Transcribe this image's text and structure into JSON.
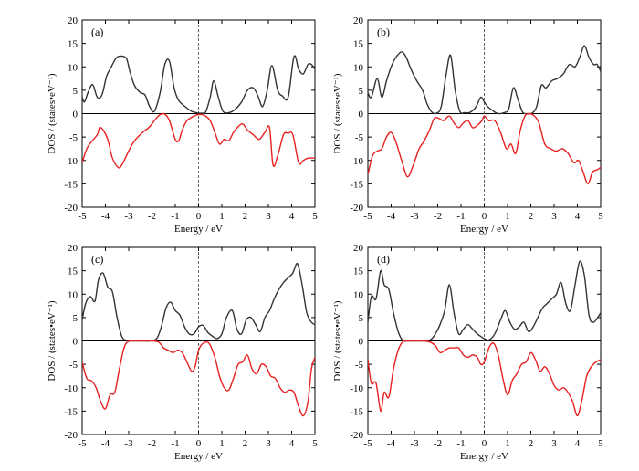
{
  "chart_data": [
    {
      "type": "line",
      "panel_label": "(a)",
      "xlabel": "Energy / eV",
      "ylabel": "DOS / (states•eV⁻¹)",
      "xlim": [
        -5,
        5
      ],
      "ylim": [
        -20,
        20
      ],
      "xticks": [
        -5,
        -4,
        -3,
        -2,
        -1,
        0,
        1,
        2,
        3,
        4,
        5
      ],
      "yticks": [
        -20,
        -15,
        -10,
        -5,
        0,
        5,
        10,
        15,
        20
      ],
      "series": [
        {
          "color": "#333333",
          "x": [
            -5,
            -4.9,
            -4.75,
            -4.55,
            -4.35,
            -4.15,
            -3.95,
            -3.8,
            -3.55,
            -3.35,
            -3.1,
            -2.95,
            -2.75,
            -2.5,
            -2.3,
            -2.1,
            -1.9,
            -1.65,
            -1.45,
            -1.25,
            -1.05,
            -0.85,
            -0.5,
            -0.3,
            -0.1,
            0,
            0.15,
            0.3,
            0.5,
            0.65,
            0.85,
            1.05,
            1.3,
            1.55,
            1.85,
            2.1,
            2.35,
            2.55,
            2.75,
            2.95,
            3.15,
            3.4,
            3.6,
            3.85,
            4.1,
            4.3,
            4.5,
            4.7,
            4.85,
            5
          ],
          "y": [
            3.5,
            2.5,
            4.5,
            6.2,
            3.5,
            4.0,
            8.0,
            9.5,
            11.8,
            12.3,
            11.8,
            9.0,
            6.0,
            4.5,
            4.0,
            1.5,
            0.5,
            4.5,
            10.5,
            11.2,
            5.5,
            2.8,
            1.2,
            0.5,
            0.2,
            0.1,
            0.1,
            0.3,
            3.5,
            7.0,
            3.5,
            0.5,
            0.2,
            0.8,
            2.5,
            5.0,
            5.5,
            3.8,
            1.5,
            5.0,
            10.3,
            5.0,
            3.8,
            3.5,
            12.2,
            9.5,
            8.5,
            10.5,
            10.5,
            9.5
          ]
        },
        {
          "color": "#e8201f",
          "x": [
            -5,
            -4.8,
            -4.6,
            -4.35,
            -4.25,
            -4.1,
            -3.9,
            -3.7,
            -3.45,
            -3.3,
            -3.1,
            -2.9,
            -2.7,
            -2.4,
            -2.1,
            -1.85,
            -1.65,
            -1.45,
            -1.25,
            -1.0,
            -0.85,
            -0.7,
            -0.5,
            -0.3,
            -0.1,
            0,
            0.15,
            0.3,
            0.5,
            0.7,
            0.9,
            1.1,
            1.3,
            1.5,
            1.7,
            1.9,
            2.1,
            2.35,
            2.6,
            2.85,
            3.05,
            3.2,
            3.4,
            3.65,
            3.85,
            4.05,
            4.3,
            4.5,
            4.7,
            4.85,
            5
          ],
          "y": [
            -10.5,
            -7.5,
            -6.0,
            -4.5,
            -3.0,
            -3.5,
            -5.5,
            -9.5,
            -11.5,
            -11.0,
            -9.0,
            -7.0,
            -5.5,
            -4.0,
            -2.8,
            -1.2,
            -0.2,
            -0.1,
            -1.5,
            -5.5,
            -5.8,
            -3.5,
            -1.5,
            -0.8,
            -0.3,
            -0.2,
            -0.2,
            -0.5,
            -1.5,
            -4.0,
            -6.5,
            -5.5,
            -5.8,
            -4.0,
            -2.8,
            -2.2,
            -3.5,
            -4.5,
            -5.5,
            -4.0,
            -3.0,
            -11.0,
            -9.0,
            -4.5,
            -4.2,
            -4.5,
            -10.5,
            -10.0,
            -9.5,
            -9.5,
            -9.5
          ]
        }
      ]
    },
    {
      "type": "line",
      "panel_label": "(b)",
      "xlabel": "Energy / eV",
      "ylabel": "DOS / (states•eV⁻¹)",
      "xlim": [
        -5,
        5
      ],
      "ylim": [
        -20,
        20
      ],
      "xticks": [
        -5,
        -4,
        -3,
        -2,
        -1,
        0,
        1,
        2,
        3,
        4,
        5
      ],
      "yticks": [
        -20,
        -15,
        -10,
        -5,
        0,
        5,
        10,
        15,
        20
      ],
      "series": [
        {
          "color": "#333333",
          "x": [
            -5,
            -4.85,
            -4.6,
            -4.4,
            -4.2,
            -4.0,
            -3.8,
            -3.55,
            -3.35,
            -3.15,
            -2.9,
            -2.65,
            -2.45,
            -2.25,
            -2.05,
            -1.85,
            -1.65,
            -1.45,
            -1.25,
            -1.05,
            -0.85,
            -0.6,
            -0.35,
            -0.15,
            0,
            0.15,
            0.4,
            0.6,
            0.85,
            1.05,
            1.25,
            1.45,
            1.65,
            1.85,
            2.05,
            2.25,
            2.45,
            2.65,
            2.9,
            3.15,
            3.4,
            3.65,
            3.9,
            4.1,
            4.3,
            4.5,
            4.7,
            4.85,
            5
          ],
          "y": [
            4.5,
            3.5,
            7.5,
            3.5,
            7.0,
            10.0,
            12.0,
            13.2,
            12.0,
            9.5,
            7.0,
            5.0,
            2.0,
            0.3,
            0.1,
            1.5,
            8.0,
            12.5,
            5.0,
            0.5,
            0.2,
            0.3,
            1.5,
            3.5,
            2.5,
            1.5,
            0.5,
            0.0,
            0.2,
            1.0,
            5.5,
            3.0,
            0.3,
            0.0,
            0.1,
            1.5,
            6.0,
            5.5,
            7.0,
            7.5,
            8.5,
            10.5,
            10.0,
            12.0,
            14.5,
            12.0,
            10.5,
            10.5,
            9.0
          ]
        },
        {
          "color": "#e8201f",
          "x": [
            -5,
            -4.8,
            -4.6,
            -4.4,
            -4.2,
            -4.0,
            -3.8,
            -3.55,
            -3.3,
            -3.05,
            -2.8,
            -2.6,
            -2.35,
            -2.15,
            -1.95,
            -1.75,
            -1.5,
            -1.3,
            -1.1,
            -0.9,
            -0.7,
            -0.5,
            -0.3,
            -0.1,
            0,
            0.2,
            0.45,
            0.7,
            0.95,
            1.15,
            1.35,
            1.55,
            1.75,
            1.95,
            2.15,
            2.35,
            2.6,
            2.85,
            3.1,
            3.35,
            3.6,
            3.85,
            4.05,
            4.25,
            4.45,
            4.65,
            4.85,
            5
          ],
          "y": [
            -13.0,
            -9.0,
            -8.0,
            -7.5,
            -5.0,
            -4.0,
            -6.0,
            -10.0,
            -13.5,
            -11.0,
            -7.5,
            -6.0,
            -3.5,
            -1.0,
            -1.0,
            -1.5,
            -0.5,
            -2.0,
            -3.0,
            -2.0,
            -1.5,
            -3.0,
            -2.5,
            -1.5,
            -0.5,
            -1.5,
            -1.5,
            -4.0,
            -7.5,
            -6.5,
            -8.5,
            -3.5,
            -0.5,
            0.0,
            -0.5,
            -2.0,
            -6.5,
            -7.5,
            -8.0,
            -7.5,
            -8.5,
            -10.5,
            -10.0,
            -12.5,
            -15.0,
            -12.5,
            -12.0,
            -11.5
          ]
        }
      ]
    },
    {
      "type": "line",
      "panel_label": "(c)",
      "xlabel": "Energy / eV",
      "ylabel": "DOS / (states•eV⁻¹)",
      "xlim": [
        -5,
        5
      ],
      "ylim": [
        -20,
        20
      ],
      "xticks": [
        -5,
        -4,
        -3,
        -2,
        -1,
        0,
        1,
        2,
        3,
        4,
        5
      ],
      "yticks": [
        -20,
        -15,
        -10,
        -5,
        0,
        5,
        10,
        15,
        20
      ],
      "series": [
        {
          "color": "#333333",
          "x": [
            -5,
            -4.85,
            -4.65,
            -4.45,
            -4.3,
            -4.1,
            -3.9,
            -3.7,
            -3.5,
            -3.3,
            -3.1,
            -2.9,
            -2.5,
            -2.1,
            -1.8,
            -1.6,
            -1.4,
            -1.2,
            -1.0,
            -0.8,
            -0.6,
            -0.4,
            -0.2,
            0,
            0.2,
            0.4,
            0.6,
            0.8,
            1.0,
            1.2,
            1.45,
            1.65,
            1.85,
            2.05,
            2.25,
            2.45,
            2.65,
            2.85,
            3.05,
            3.25,
            3.45,
            3.65,
            3.85,
            4.05,
            4.25,
            4.45,
            4.65,
            4.85,
            5
          ],
          "y": [
            4.5,
            8.0,
            9.5,
            8.5,
            13.0,
            14.5,
            11.5,
            10.5,
            5.0,
            1.0,
            0.1,
            0.0,
            0.0,
            0.0,
            0.5,
            3.0,
            7.0,
            8.3,
            6.5,
            5.5,
            3.0,
            1.5,
            1.5,
            3.0,
            3.3,
            1.8,
            1.0,
            0.5,
            1.5,
            5.0,
            6.5,
            2.5,
            1.5,
            4.5,
            5.0,
            3.5,
            2.0,
            5.0,
            6.5,
            9.0,
            11.0,
            12.5,
            13.5,
            14.5,
            16.5,
            12.0,
            6.0,
            4.0,
            3.5
          ]
        },
        {
          "color": "#e8201f",
          "x": [
            -5,
            -4.8,
            -4.6,
            -4.4,
            -4.2,
            -4.0,
            -3.8,
            -3.6,
            -3.4,
            -3.2,
            -3.0,
            -2.5,
            -2.0,
            -1.7,
            -1.5,
            -1.3,
            -1.1,
            -0.9,
            -0.7,
            -0.5,
            -0.3,
            -0.15,
            0,
            0.2,
            0.45,
            0.7,
            0.9,
            1.1,
            1.3,
            1.5,
            1.7,
            1.9,
            2.1,
            2.3,
            2.5,
            2.7,
            2.9,
            3.1,
            3.3,
            3.5,
            3.7,
            3.9,
            4.1,
            4.3,
            4.5,
            4.7,
            4.85,
            5
          ],
          "y": [
            -4.5,
            -8.0,
            -8.5,
            -10.0,
            -13.0,
            -14.5,
            -11.5,
            -11.0,
            -6.0,
            -1.5,
            -0.1,
            0.0,
            0.0,
            -0.3,
            -1.5,
            -2.0,
            -2.5,
            -2.0,
            -2.5,
            -4.5,
            -6.5,
            -5.5,
            -2.0,
            -0.5,
            -0.5,
            -3.5,
            -7.5,
            -10.0,
            -10.5,
            -8.0,
            -5.0,
            -4.5,
            -3.0,
            -6.0,
            -7.0,
            -5.0,
            -5.5,
            -7.5,
            -8.0,
            -10.0,
            -11.0,
            -10.5,
            -11.0,
            -14.0,
            -16.0,
            -13.0,
            -6.0,
            -3.5
          ]
        }
      ]
    },
    {
      "type": "line",
      "panel_label": "(d)",
      "xlabel": "Energy / eV",
      "ylabel": "DOS / (states•eV⁻¹)",
      "xlim": [
        -5,
        5
      ],
      "ylim": [
        -20,
        20
      ],
      "xticks": [
        -5,
        -4,
        -3,
        -2,
        -1,
        0,
        1,
        2,
        3,
        4,
        5
      ],
      "yticks": [
        -20,
        -15,
        -10,
        -5,
        0,
        5,
        10,
        15,
        20
      ],
      "series": [
        {
          "color": "#333333",
          "x": [
            -5,
            -4.85,
            -4.65,
            -4.45,
            -4.3,
            -4.1,
            -3.9,
            -3.7,
            -3.5,
            -3.3,
            -3.0,
            -2.6,
            -2.3,
            -2.1,
            -1.9,
            -1.7,
            -1.5,
            -1.3,
            -1.1,
            -0.9,
            -0.7,
            -0.5,
            -0.3,
            -0.1,
            0,
            0.2,
            0.45,
            0.7,
            0.9,
            1.1,
            1.3,
            1.5,
            1.7,
            1.9,
            2.1,
            2.3,
            2.5,
            2.7,
            2.9,
            3.1,
            3.3,
            3.5,
            3.7,
            3.9,
            4.1,
            4.3,
            4.5,
            4.7,
            5
          ],
          "y": [
            4.0,
            9.5,
            9.0,
            15.0,
            12.0,
            11.0,
            6.0,
            2.0,
            0.1,
            0.0,
            0.0,
            0.0,
            0.3,
            1.5,
            3.5,
            6.5,
            12.0,
            6.0,
            1.5,
            2.5,
            3.5,
            2.5,
            1.5,
            0.8,
            0.5,
            0.2,
            1.5,
            4.5,
            6.5,
            4.0,
            2.5,
            3.0,
            4.0,
            2.0,
            3.0,
            5.0,
            7.0,
            8.0,
            9.0,
            10.0,
            12.5,
            8.0,
            6.5,
            12.0,
            17.0,
            14.0,
            5.5,
            4.0,
            6.0
          ]
        },
        {
          "color": "#e8201f",
          "x": [
            -5,
            -4.85,
            -4.65,
            -4.45,
            -4.3,
            -4.1,
            -3.9,
            -3.7,
            -3.5,
            -3.3,
            -3.0,
            -2.6,
            -2.3,
            -2.1,
            -1.9,
            -1.7,
            -1.5,
            -1.3,
            -1.1,
            -0.9,
            -0.7,
            -0.5,
            -0.3,
            -0.15,
            0,
            0.2,
            0.4,
            0.6,
            0.8,
            1.0,
            1.2,
            1.4,
            1.6,
            1.8,
            2.0,
            2.2,
            2.4,
            2.6,
            2.8,
            3.0,
            3.2,
            3.4,
            3.6,
            3.8,
            4.0,
            4.2,
            4.4,
            4.6,
            4.8,
            5
          ],
          "y": [
            -4.0,
            -9.0,
            -9.0,
            -15.0,
            -11.0,
            -12.0,
            -6.0,
            -2.0,
            -0.2,
            0.0,
            0.0,
            0.0,
            -0.3,
            -1.0,
            -2.5,
            -2.0,
            -1.5,
            -1.5,
            -1.5,
            -3.0,
            -3.5,
            -3.0,
            -3.5,
            -5.0,
            -4.5,
            -1.5,
            -0.5,
            -3.0,
            -8.0,
            -11.5,
            -8.5,
            -7.0,
            -5.0,
            -4.5,
            -2.5,
            -4.0,
            -6.5,
            -5.5,
            -7.0,
            -9.5,
            -10.5,
            -10.0,
            -11.0,
            -13.0,
            -16.0,
            -12.5,
            -7.5,
            -5.5,
            -4.5,
            -4.0
          ]
        }
      ]
    }
  ]
}
